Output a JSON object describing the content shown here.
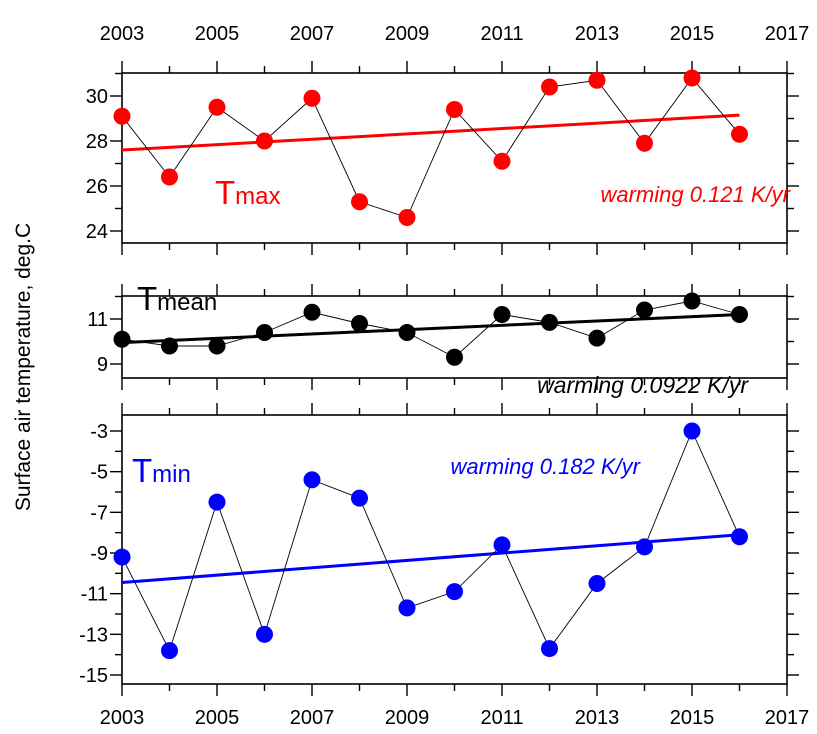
{
  "chart_data": {
    "type": "line",
    "ylabel": "Surface air temperature, deg.C",
    "x_ticks": [
      "2003",
      "2005",
      "2007",
      "2009",
      "2011",
      "2013",
      "2015",
      "2017"
    ],
    "xlim": [
      2003,
      2017
    ],
    "panels": [
      {
        "id": "tmax",
        "label_main": "T",
        "label_sub": "max",
        "annotation": "warming 0.121 K/yr",
        "color": "#ff0000",
        "ylim": [
          24,
          31
        ],
        "y_ticks": [
          "24",
          "26",
          "28",
          "30"
        ],
        "x": [
          2003,
          2004,
          2005,
          2006,
          2007,
          2008,
          2009,
          2010,
          2011,
          2012,
          2013,
          2014,
          2015,
          2016
        ],
        "values": [
          29.1,
          26.4,
          29.5,
          28.0,
          29.9,
          25.3,
          24.6,
          29.4,
          27.1,
          30.4,
          30.7,
          27.9,
          30.8,
          28.3
        ],
        "trend": {
          "start": 27.6,
          "end": 29.15
        }
      },
      {
        "id": "tmean",
        "label_main": "T",
        "label_sub": "mean",
        "annotation": "warming 0.0922 K/yr",
        "color": "#000000",
        "ylim": [
          8.5,
          12.5
        ],
        "y_ticks": [
          "9",
          "11"
        ],
        "x": [
          2003,
          2004,
          2005,
          2006,
          2007,
          2008,
          2009,
          2010,
          2011,
          2012,
          2013,
          2014,
          2015,
          2016
        ],
        "values": [
          10.1,
          9.8,
          9.8,
          10.4,
          11.3,
          10.8,
          10.4,
          9.3,
          11.2,
          10.85,
          10.15,
          11.4,
          11.8,
          11.2
        ],
        "trend": {
          "start": 9.95,
          "end": 11.2
        }
      },
      {
        "id": "tmin",
        "label_main": "T",
        "label_sub": "min",
        "annotation": "warming 0.182 K/yr",
        "color": "#0000ff",
        "ylim": [
          -15.2,
          -2.5
        ],
        "y_ticks": [
          "-15",
          "-13",
          "-11",
          "-9",
          "-7",
          "-5",
          "-3"
        ],
        "x": [
          2003,
          2004,
          2005,
          2006,
          2007,
          2008,
          2009,
          2010,
          2011,
          2012,
          2013,
          2014,
          2015,
          2016
        ],
        "values": [
          -9.2,
          -13.8,
          -6.5,
          -13.0,
          -5.4,
          -6.3,
          -11.7,
          -10.9,
          -8.6,
          -13.7,
          -10.5,
          -8.7,
          -3.0,
          -8.2
        ],
        "trend": {
          "start": -10.45,
          "end": -8.1
        }
      }
    ]
  }
}
